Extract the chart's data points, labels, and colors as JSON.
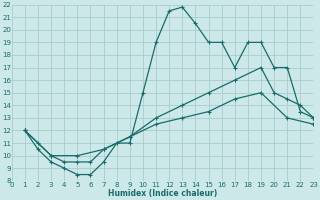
{
  "title": "",
  "xlabel": "Humidex (Indice chaleur)",
  "xlim": [
    0,
    23
  ],
  "ylim": [
    8,
    22
  ],
  "xticks": [
    0,
    1,
    2,
    3,
    4,
    5,
    6,
    7,
    8,
    9,
    10,
    11,
    12,
    13,
    14,
    15,
    16,
    17,
    18,
    19,
    20,
    21,
    22,
    23
  ],
  "yticks": [
    8,
    9,
    10,
    11,
    12,
    13,
    14,
    15,
    16,
    17,
    18,
    19,
    20,
    21,
    22
  ],
  "bg_color": "#cce8e8",
  "grid_color": "#aacccc",
  "line_color": "#1a6b6b",
  "line1_x": [
    1,
    2,
    3,
    4,
    5,
    6,
    7,
    8,
    9,
    10,
    11,
    12,
    13,
    14,
    15,
    16,
    17,
    18,
    19,
    20,
    21,
    22,
    23
  ],
  "line1_y": [
    12,
    10.5,
    9.5,
    9.0,
    8.5,
    8.5,
    9.5,
    11.0,
    11.0,
    15.0,
    19.0,
    21.5,
    21.8,
    20.5,
    19.0,
    19.0,
    17.0,
    19.0,
    19.0,
    17.0,
    17.0,
    13.5,
    13.0
  ],
  "line2_x": [
    1,
    2,
    3,
    4,
    5,
    6,
    7,
    9,
    11,
    13,
    15,
    17,
    19,
    20,
    21,
    22,
    23
  ],
  "line2_y": [
    12,
    11,
    10,
    9.5,
    9.5,
    9.5,
    10.5,
    11.5,
    13.0,
    14.0,
    15.0,
    16.0,
    17.0,
    15.0,
    14.5,
    14.0,
    13.0
  ],
  "line3_x": [
    1,
    3,
    5,
    7,
    9,
    11,
    13,
    15,
    17,
    19,
    21,
    23
  ],
  "line3_y": [
    12,
    10,
    10,
    10.5,
    11.5,
    12.5,
    13.0,
    13.5,
    14.5,
    15.0,
    13.0,
    12.5
  ]
}
